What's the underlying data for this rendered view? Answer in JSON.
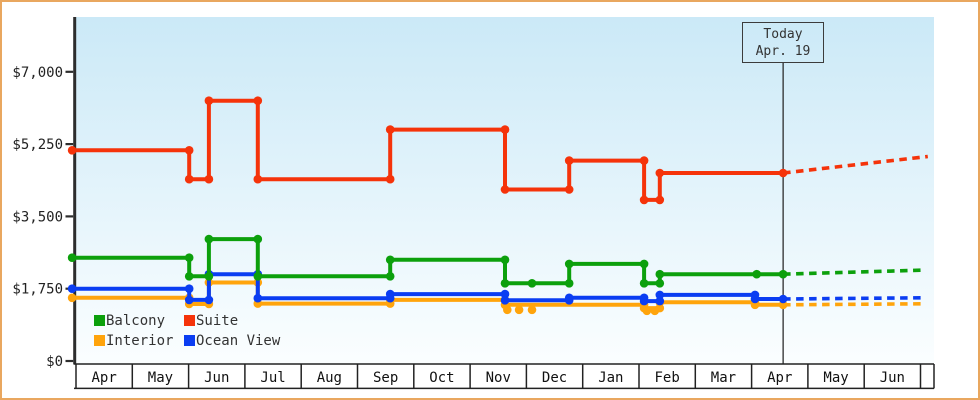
{
  "chart_data": {
    "type": "line",
    "title": "",
    "description": "Cruise cabin price history by category with forecast after today marker",
    "y_axis": {
      "tick_values": [
        0,
        1750,
        3500,
        5250,
        7000
      ],
      "tick_labels": [
        "$0",
        "$1,750",
        "$3,500",
        "$5,250",
        "$7,000"
      ],
      "range": [
        0,
        7500
      ],
      "grid": false
    },
    "x_axis": {
      "months": [
        "Apr",
        "May",
        "Jun",
        "Jul",
        "Aug",
        "Sep",
        "Oct",
        "Nov",
        "Dec",
        "Jan",
        "Feb",
        "Mar",
        "Apr",
        "May",
        "Jun",
        ""
      ]
    },
    "today": {
      "label": "Today",
      "date": "Apr. 19",
      "month_position": 12.56
    },
    "legend_position": "bottom-left-inside",
    "colors": {
      "axis": "#2d2d2d",
      "frame_border": "#e9a75f",
      "plot_bg_top": "#cbe9f7",
      "plot_bg_bottom": "#fbfeff",
      "month_row_bg": "#ffffff"
    },
    "series": [
      {
        "name": "Balcony",
        "color": "#0ca00c",
        "points": [
          [
            -0.07,
            2500
          ],
          [
            2.01,
            2500
          ],
          [
            2.01,
            2050
          ],
          [
            2.36,
            2050
          ],
          [
            2.36,
            2950
          ],
          [
            3.23,
            2950
          ],
          [
            3.23,
            2050
          ],
          [
            5.58,
            2050
          ],
          [
            5.58,
            2450
          ],
          [
            7.62,
            2450
          ],
          [
            7.62,
            1880
          ],
          [
            8.76,
            1880
          ],
          [
            8.76,
            2350
          ],
          [
            10.09,
            2350
          ],
          [
            10.09,
            1880
          ],
          [
            10.37,
            1880
          ],
          [
            10.37,
            2100
          ],
          [
            12.56,
            2100
          ]
        ],
        "forecast": [
          [
            12.56,
            2100
          ],
          [
            15.08,
            2200
          ]
        ],
        "extra_markers": [
          [
            8.1,
            1880
          ],
          [
            12.09,
            2100
          ]
        ]
      },
      {
        "name": "Suite",
        "color": "#f5330a",
        "points": [
          [
            -0.07,
            5100
          ],
          [
            2.01,
            5100
          ],
          [
            2.01,
            4400
          ],
          [
            2.36,
            4400
          ],
          [
            2.36,
            6300
          ],
          [
            3.23,
            6300
          ],
          [
            3.23,
            4400
          ],
          [
            5.58,
            4400
          ],
          [
            5.58,
            5600
          ],
          [
            7.62,
            5600
          ],
          [
            7.62,
            4150
          ],
          [
            8.76,
            4150
          ],
          [
            8.76,
            4850
          ],
          [
            10.09,
            4850
          ],
          [
            10.09,
            3900
          ],
          [
            10.37,
            3900
          ],
          [
            10.37,
            4550
          ],
          [
            12.56,
            4550
          ]
        ],
        "forecast": [
          [
            12.56,
            4550
          ],
          [
            15.13,
            4950
          ]
        ],
        "extra_markers": []
      },
      {
        "name": "Interior",
        "color": "#ffa40c",
        "points": [
          [
            -0.07,
            1530
          ],
          [
            2.01,
            1530
          ],
          [
            2.01,
            1380
          ],
          [
            2.36,
            1380
          ],
          [
            2.36,
            1900
          ],
          [
            3.23,
            1900
          ],
          [
            3.23,
            1390
          ],
          [
            5.58,
            1390
          ],
          [
            5.58,
            1480
          ],
          [
            7.62,
            1480
          ],
          [
            7.62,
            1360
          ],
          [
            10.09,
            1360
          ],
          [
            10.09,
            1280
          ],
          [
            10.37,
            1280
          ],
          [
            10.37,
            1420
          ],
          [
            12.06,
            1420
          ],
          [
            12.06,
            1360
          ],
          [
            12.56,
            1360
          ]
        ],
        "forecast": [
          [
            12.56,
            1360
          ],
          [
            15.03,
            1385
          ]
        ],
        "extra_markers": [
          [
            7.66,
            1240
          ],
          [
            7.87,
            1240
          ],
          [
            8.1,
            1240
          ],
          [
            10.14,
            1215
          ],
          [
            10.28,
            1215
          ]
        ]
      },
      {
        "name": "Ocean View",
        "color": "#0a3df2",
        "points": [
          [
            -0.07,
            1750
          ],
          [
            2.01,
            1750
          ],
          [
            2.01,
            1480
          ],
          [
            2.36,
            1480
          ],
          [
            2.36,
            2100
          ],
          [
            3.23,
            2100
          ],
          [
            3.23,
            1520
          ],
          [
            5.58,
            1520
          ],
          [
            5.58,
            1620
          ],
          [
            7.62,
            1620
          ],
          [
            7.62,
            1470
          ],
          [
            8.76,
            1470
          ],
          [
            8.76,
            1530
          ],
          [
            10.09,
            1530
          ],
          [
            10.09,
            1450
          ],
          [
            10.37,
            1450
          ],
          [
            10.37,
            1600
          ],
          [
            12.06,
            1600
          ],
          [
            12.06,
            1500
          ],
          [
            12.56,
            1500
          ]
        ],
        "forecast": [
          [
            12.56,
            1500
          ],
          [
            15.03,
            1530
          ]
        ],
        "extra_markers": []
      }
    ]
  }
}
